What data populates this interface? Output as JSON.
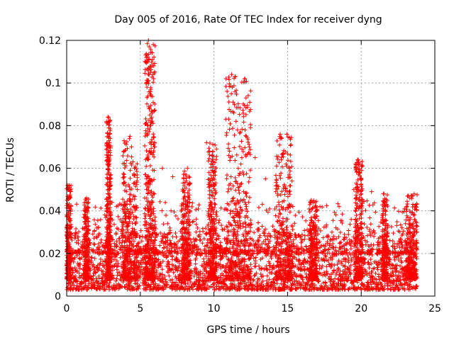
{
  "chart_data": {
    "type": "scatter",
    "title": "Day 005 of 2016, Rate Of TEC Index for receiver dyng",
    "xlabel": "GPS time / hours",
    "ylabel": "ROTI / TECUs",
    "xlim": [
      0,
      25
    ],
    "ylim": [
      0,
      0.12
    ],
    "xticks": [
      0,
      5,
      10,
      15,
      20,
      25
    ],
    "xtick_labels": [
      "0",
      "5",
      "10",
      "15",
      "20",
      "25"
    ],
    "yticks": [
      0,
      0.02,
      0.04,
      0.06,
      0.08,
      0.1,
      0.12
    ],
    "ytick_labels": [
      "0",
      "0.02",
      "0.04",
      "0.06",
      "0.08",
      "0.1",
      "0.12"
    ],
    "grid": true,
    "marker": "+",
    "color": "#ff0000",
    "series": [
      {
        "name": "ROTI",
        "x_range": [
          0,
          23.8
        ],
        "baseline_range": [
          0.003,
          0.028
        ],
        "dense_bands": [
          {
            "x": [
              0.0,
              0.3
            ],
            "y_max": 0.052
          },
          {
            "x": [
              1.2,
              1.5
            ],
            "y_max": 0.046
          },
          {
            "x": [
              2.7,
              3.0
            ],
            "y_max": 0.084
          },
          {
            "x": [
              3.8,
              4.8
            ],
            "y_max": 0.075
          },
          {
            "x": [
              5.3,
              6.0
            ],
            "y_max": 0.12
          },
          {
            "x": [
              7.8,
              8.4
            ],
            "y_max": 0.06
          },
          {
            "x": [
              9.6,
              10.2
            ],
            "y_max": 0.072
          },
          {
            "x": [
              10.8,
              12.5
            ],
            "y_max": 0.104
          },
          {
            "x": [
              14.2,
              15.3
            ],
            "y_max": 0.076
          },
          {
            "x": [
              16.5,
              17.0
            ],
            "y_max": 0.045
          },
          {
            "x": [
              19.6,
              20.1
            ],
            "y_max": 0.064
          },
          {
            "x": [
              21.4,
              21.8
            ],
            "y_max": 0.048
          },
          {
            "x": [
              23.0,
              23.8
            ],
            "y_max": 0.048
          }
        ],
        "peaks": [
          {
            "x": 0.15,
            "y": 0.052
          },
          {
            "x": 0.2,
            "y": 0.051
          },
          {
            "x": 1.35,
            "y": 0.046
          },
          {
            "x": 1.4,
            "y": 0.04
          },
          {
            "x": 2.8,
            "y": 0.084
          },
          {
            "x": 2.85,
            "y": 0.082
          },
          {
            "x": 2.9,
            "y": 0.072
          },
          {
            "x": 2.85,
            "y": 0.064
          },
          {
            "x": 2.8,
            "y": 0.055
          },
          {
            "x": 3.9,
            "y": 0.068
          },
          {
            "x": 4.3,
            "y": 0.075
          },
          {
            "x": 4.4,
            "y": 0.07
          },
          {
            "x": 4.5,
            "y": 0.063
          },
          {
            "x": 4.6,
            "y": 0.06
          },
          {
            "x": 4.8,
            "y": 0.05
          },
          {
            "x": 5.55,
            "y": 0.12
          },
          {
            "x": 5.6,
            "y": 0.117
          },
          {
            "x": 5.5,
            "y": 0.11
          },
          {
            "x": 5.55,
            "y": 0.107
          },
          {
            "x": 5.45,
            "y": 0.098
          },
          {
            "x": 5.6,
            "y": 0.088
          },
          {
            "x": 5.65,
            "y": 0.085
          },
          {
            "x": 5.7,
            "y": 0.08
          },
          {
            "x": 5.5,
            "y": 0.076
          },
          {
            "x": 5.9,
            "y": 0.071
          },
          {
            "x": 5.95,
            "y": 0.07
          },
          {
            "x": 6.5,
            "y": 0.06
          },
          {
            "x": 7.2,
            "y": 0.056
          },
          {
            "x": 8.2,
            "y": 0.06
          },
          {
            "x": 8.3,
            "y": 0.056
          },
          {
            "x": 9.5,
            "y": 0.072
          },
          {
            "x": 9.7,
            "y": 0.068
          },
          {
            "x": 9.8,
            "y": 0.062
          },
          {
            "x": 10.0,
            "y": 0.058
          },
          {
            "x": 11.2,
            "y": 0.104
          },
          {
            "x": 11.25,
            "y": 0.098
          },
          {
            "x": 11.3,
            "y": 0.091
          },
          {
            "x": 11.35,
            "y": 0.086
          },
          {
            "x": 11.5,
            "y": 0.082
          },
          {
            "x": 11.6,
            "y": 0.078
          },
          {
            "x": 11.8,
            "y": 0.077
          },
          {
            "x": 12.2,
            "y": 0.075
          },
          {
            "x": 12.4,
            "y": 0.07
          },
          {
            "x": 11.0,
            "y": 0.066
          },
          {
            "x": 11.9,
            "y": 0.069
          },
          {
            "x": 12.8,
            "y": 0.065
          },
          {
            "x": 13.5,
            "y": 0.055
          },
          {
            "x": 14.5,
            "y": 0.076
          },
          {
            "x": 14.6,
            "y": 0.074
          },
          {
            "x": 14.7,
            "y": 0.067
          },
          {
            "x": 14.9,
            "y": 0.062
          },
          {
            "x": 15.1,
            "y": 0.06
          },
          {
            "x": 15.3,
            "y": 0.054
          },
          {
            "x": 16.6,
            "y": 0.045
          },
          {
            "x": 17.2,
            "y": 0.042
          },
          {
            "x": 18.5,
            "y": 0.042
          },
          {
            "x": 19.5,
            "y": 0.05
          },
          {
            "x": 19.8,
            "y": 0.064
          },
          {
            "x": 19.9,
            "y": 0.058
          },
          {
            "x": 20.7,
            "y": 0.049
          },
          {
            "x": 21.5,
            "y": 0.048
          },
          {
            "x": 21.6,
            "y": 0.044
          },
          {
            "x": 23.3,
            "y": 0.046
          },
          {
            "x": 23.5,
            "y": 0.047
          },
          {
            "x": 23.7,
            "y": 0.042
          }
        ]
      }
    ]
  }
}
